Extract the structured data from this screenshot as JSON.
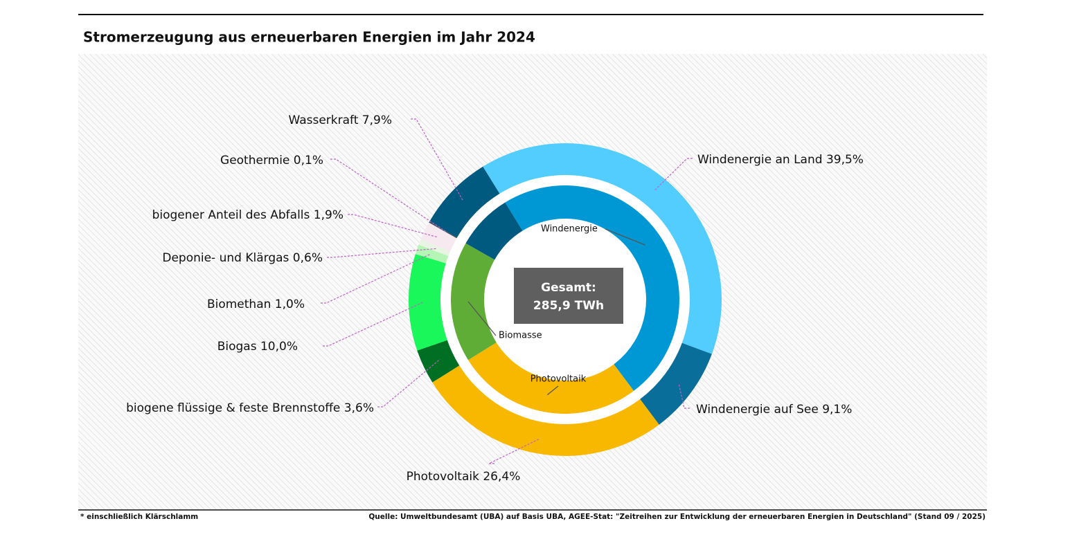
{
  "chart_data": {
    "type": "donut",
    "title": "Stromerzeugung aus erneuerbaren Energien im Jahr 2024",
    "center_label": [
      "Gesamt:",
      "285,9 TWh"
    ],
    "footnote": "* einschließlich Klärschlamm",
    "source": "Quelle: Umweltbundesamt (UBA) auf Basis UBA, AGEE-Stat: \"Zeitreihen zur Entwicklung der erneuerbaren Energien in Deutschland\" (Stand 09 / 2025)",
    "outer": {
      "categories": [
        "Windenergie an Land",
        "Windenergie auf See",
        "Photovoltaik",
        "biogene flüssige & feste Brennstoffe",
        "Biogas",
        "Biomethan",
        "Deponie- und Klärgas",
        "biogener Anteil des Abfalls",
        "Geothermie",
        "Wasserkraft"
      ],
      "values": [
        39.5,
        9.1,
        26.4,
        3.6,
        10.0,
        1.0,
        0.6,
        1.9,
        0.1,
        7.9
      ],
      "value_labels": [
        "39,5%",
        "9,1%",
        "26,4%",
        "3,6%",
        "10,0%",
        "1,0%",
        "0,6%",
        "1,9%",
        "0,1%",
        "7,9%"
      ],
      "colors": [
        "#52cdfd",
        "#0a6e9a",
        "#f9b800",
        "#006f23",
        "#19f75a",
        "#b5f5b5",
        "#e8f5e2",
        "#f6e9f0",
        "#3c4850",
        "#005a80"
      ]
    },
    "inner": {
      "categories": [
        "Windenergie",
        "Photovoltaik",
        "Biomasse",
        null
      ],
      "values": [
        48.6,
        26.4,
        17.1,
        8.0
      ],
      "colors": [
        "#0098d4",
        "#f9b800",
        "#5fad36",
        "#005a80"
      ]
    }
  }
}
